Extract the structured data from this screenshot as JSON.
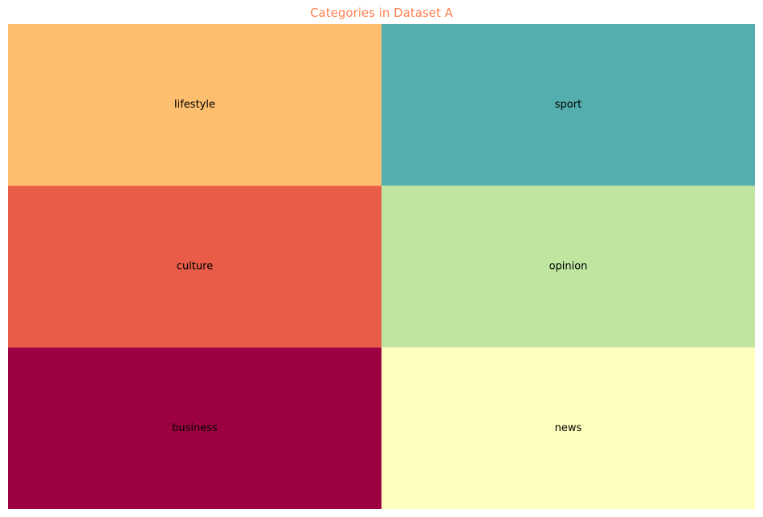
{
  "chart_data": {
    "type": "treemap",
    "title": "Categories in Dataset A",
    "title_color": "#ff7f50",
    "items": [
      {
        "label": "business",
        "value": 1,
        "color": "#9e0142"
      },
      {
        "label": "culture",
        "value": 1,
        "color": "#e95c47"
      },
      {
        "label": "lifestyle",
        "value": 1,
        "color": "#fdbf6f"
      },
      {
        "label": "news",
        "value": 1,
        "color": "#feffbe"
      },
      {
        "label": "opinion",
        "value": 1,
        "color": "#bfe5a0"
      },
      {
        "label": "sport",
        "value": 1,
        "color": "#54aead"
      }
    ]
  }
}
